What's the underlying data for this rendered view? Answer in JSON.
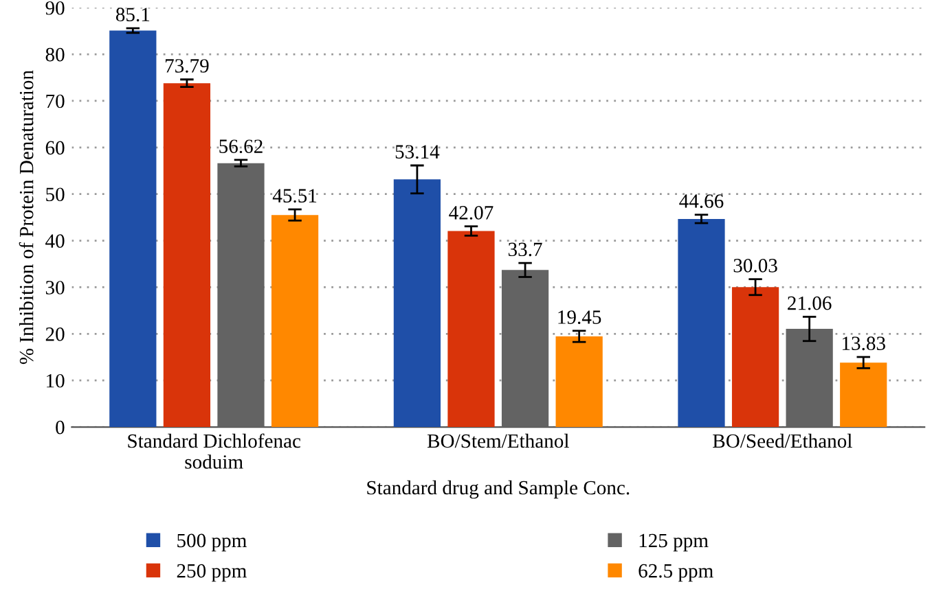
{
  "chart_data": {
    "type": "bar",
    "xlabel": "Standard drug and Sample Conc.",
    "ylabel": "% Inhibition of Protein Denaturation",
    "categories": [
      "Standard Dichlofenac soduim",
      "BO/Stem/Ethanol",
      "BO/Seed/Ethanol"
    ],
    "series": [
      {
        "name": "500 ppm",
        "color": "#1f4fa8",
        "values": [
          85.1,
          53.14,
          44.66
        ],
        "errors": [
          0.5,
          3,
          0.9
        ]
      },
      {
        "name": "250 ppm",
        "color": "#d9340a",
        "values": [
          73.79,
          42.07,
          30.03
        ],
        "errors": [
          0.8,
          1,
          1.7
        ]
      },
      {
        "name": "125 ppm",
        "color": "#636363",
        "values": [
          56.62,
          33.7,
          21.06
        ],
        "errors": [
          0.7,
          1.5,
          2.6
        ]
      },
      {
        "name": "62.5 ppm",
        "color": "#ff8800",
        "values": [
          45.51,
          19.45,
          13.83
        ],
        "errors": [
          1.2,
          1.2,
          1.2
        ]
      }
    ],
    "ylim": [
      0,
      90
    ],
    "yticks": [
      0,
      10,
      20,
      30,
      40,
      50,
      60,
      70,
      80,
      90
    ],
    "grid": "y",
    "legend": "bottom",
    "data_labels": true
  }
}
